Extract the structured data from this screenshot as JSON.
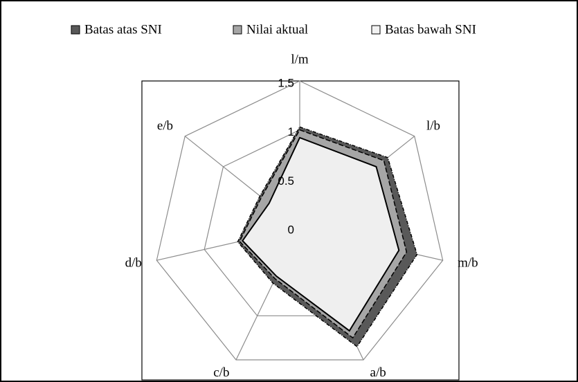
{
  "chart_data": {
    "type": "radar",
    "categories": [
      "l/m",
      "l/b",
      "m/b",
      "a/b",
      "c/b",
      "d/b",
      "e/b"
    ],
    "ylim": [
      0,
      1.5
    ],
    "yticks": [
      0,
      0.5,
      1,
      1.5
    ],
    "grid": true,
    "legend": "top",
    "series": [
      {
        "name": "Batas atas SNI",
        "color": "#595959",
        "values": [
          1.03,
          1.15,
          1.23,
          1.35,
          0.63,
          0.65,
          0.52
        ]
      },
      {
        "name": "Nilai aktual",
        "color": "#a6a6a6",
        "values": [
          1.0,
          1.1,
          1.12,
          1.25,
          0.58,
          0.63,
          0.5
        ]
      },
      {
        "name": "Batas bawah SNI",
        "color": "#f2f2f2",
        "values": [
          0.92,
          1.0,
          1.04,
          1.17,
          0.55,
          0.6,
          0.4
        ]
      }
    ]
  }
}
